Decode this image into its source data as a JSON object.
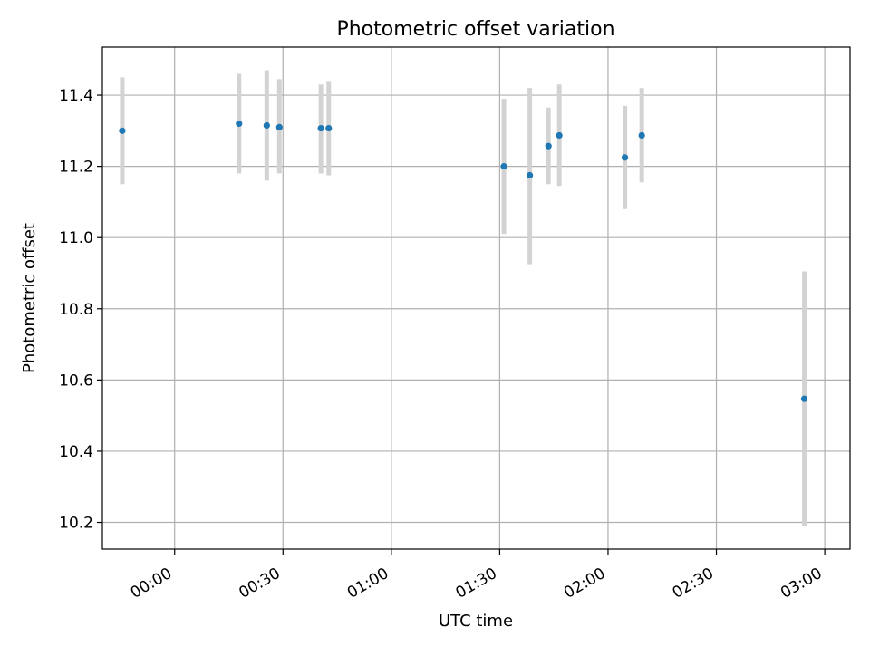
{
  "chart_data": {
    "type": "scatter",
    "title": "Photometric offset variation",
    "xlabel": "UTC time",
    "ylabel": "Photometric offset",
    "x_is_time": true,
    "xlim": [
      "23:40",
      "03:07"
    ],
    "ylim": [
      10.125,
      11.535
    ],
    "x_ticks": [
      "00:00",
      "00:30",
      "01:00",
      "01:30",
      "02:00",
      "02:30",
      "03:00"
    ],
    "y_ticks": [
      10.2,
      10.4,
      10.6,
      10.8,
      11.0,
      11.2,
      11.4
    ],
    "y_tick_labels": [
      "10.2",
      "10.4",
      "10.6",
      "10.8",
      "11.0",
      "11.2",
      "11.4"
    ],
    "grid": true,
    "marker_color": "#1f77b4",
    "errorbar_color": "#d3d3d3",
    "points": [
      {
        "x": "23:45:30",
        "y": 11.3,
        "ylow": 11.15,
        "yhigh": 11.45
      },
      {
        "x": "00:17:50",
        "y": 11.32,
        "ylow": 11.18,
        "yhigh": 11.46
      },
      {
        "x": "00:25:30",
        "y": 11.315,
        "ylow": 11.16,
        "yhigh": 11.47
      },
      {
        "x": "00:29:00",
        "y": 11.31,
        "ylow": 11.18,
        "yhigh": 11.445
      },
      {
        "x": "00:40:30",
        "y": 11.307,
        "ylow": 11.18,
        "yhigh": 11.43
      },
      {
        "x": "00:42:40",
        "y": 11.307,
        "ylow": 11.175,
        "yhigh": 11.44
      },
      {
        "x": "01:31:10",
        "y": 11.2,
        "ylow": 11.01,
        "yhigh": 11.39
      },
      {
        "x": "01:38:20",
        "y": 11.175,
        "ylow": 10.925,
        "yhigh": 11.42
      },
      {
        "x": "01:43:30",
        "y": 11.257,
        "ylow": 11.15,
        "yhigh": 11.365
      },
      {
        "x": "01:46:30",
        "y": 11.287,
        "ylow": 11.145,
        "yhigh": 11.43
      },
      {
        "x": "02:04:40",
        "y": 11.225,
        "ylow": 11.08,
        "yhigh": 11.37
      },
      {
        "x": "02:09:20",
        "y": 11.287,
        "ylow": 11.155,
        "yhigh": 11.42
      },
      {
        "x": "02:54:20",
        "y": 10.547,
        "ylow": 10.19,
        "yhigh": 10.905
      }
    ]
  }
}
